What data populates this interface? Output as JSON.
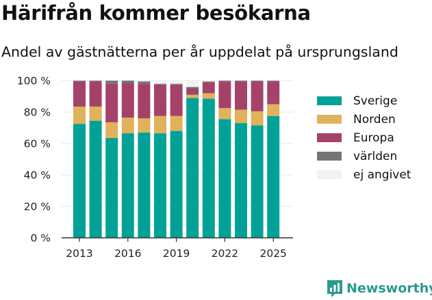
{
  "header": {
    "title": "Härifrån kommer besökarna",
    "subtitle": "Andel av gästnätterna per år uppdelat på ursprungsland"
  },
  "brand": {
    "name": "Newsworthy",
    "icon": "bar-chart-icon",
    "color": "#2a9a8d"
  },
  "chart_data": {
    "type": "bar",
    "stacked": true,
    "categories": [
      "2013",
      "2014",
      "2015",
      "2016",
      "2017",
      "2018",
      "2019",
      "2020",
      "2021",
      "2022",
      "2023",
      "2024",
      "2025"
    ],
    "x_tick_labels": [
      "2013",
      "2016",
      "2019",
      "2022",
      "2025"
    ],
    "y_tick_labels": [
      "0 %",
      "20 %",
      "40 %",
      "60 %",
      "80 %",
      "100 %"
    ],
    "ylim": [
      0,
      100
    ],
    "grid": true,
    "legend_position": "right",
    "series": [
      {
        "name": "Sverige",
        "color": "#00a297",
        "values": [
          72.5,
          74.5,
          63.5,
          66.5,
          67,
          66.5,
          68,
          89,
          88.5,
          75.5,
          73,
          71.5,
          77.5
        ]
      },
      {
        "name": "Norden",
        "color": "#dfb25b",
        "values": [
          11,
          9,
          10,
          10,
          9,
          11,
          9.5,
          2,
          3.5,
          7,
          8.5,
          9,
          7.5
        ]
      },
      {
        "name": "Europa",
        "color": "#a5426a",
        "values": [
          16,
          16,
          24.5,
          22,
          22,
          20,
          20,
          4,
          7,
          17,
          18,
          19,
          14.5
        ]
      },
      {
        "name": "världen",
        "color": "#757575",
        "values": [
          0.5,
          0.5,
          2,
          1.5,
          1.5,
          0.5,
          0.5,
          1,
          0.5,
          0.5,
          0.5,
          0.5,
          0.5
        ]
      },
      {
        "name": "ej angivet",
        "color": "#f2f2f2",
        "values": [
          0,
          0,
          0,
          0,
          0,
          1.5,
          1.5,
          4,
          0.5,
          0,
          0,
          0,
          0
        ]
      }
    ]
  }
}
